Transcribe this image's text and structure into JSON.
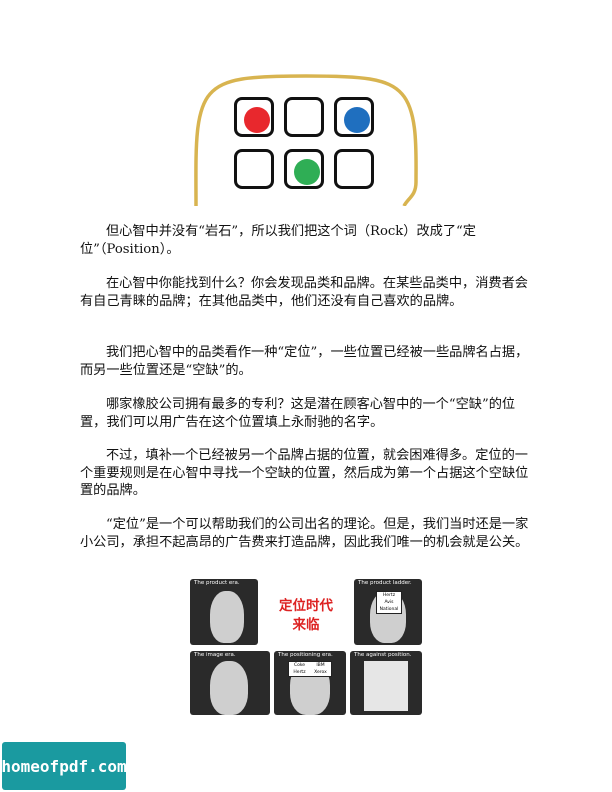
{
  "paragraphs": [
    {
      "text": "但心智中并没有“岩石”，所以我们把这个词（Rock）改成了“定位”（Position）。"
    },
    {
      "text": "在心智中你能找到什么？你会发现品类和品牌。在某些品类中，消费者会有自己青睐的品牌；在其他品类中，他们还没有自己喜欢的品牌。"
    },
    {
      "text": "我们把心智中的品类看作一种“定位”，一些位置已经被一些品牌名占据，而另一些位置还是“空缺”的。"
    },
    {
      "text": "哪家橡胶公司拥有最多的专利？这是潜在顾客心智中的一个“空缺”的位置，我们可以用广告在这个位置填上永耐驰的名字。"
    },
    {
      "text": "不过，填补一个已经被另一个品牌占据的位置，就会困难得多。定位的一个重要规则是在心智中寻找一个空缺的位置，然后成为第一个占据这个空缺位置的品牌。"
    },
    {
      "text": "“定位”是一个可以帮助我们的公司出名的理论。但是，我们当时还是一家小公司，承担不起高昂的广告费来打造品牌，因此我们唯一的机会就是公关。"
    }
  ],
  "illustration": {
    "colors": {
      "outline": "#d8b450",
      "red": "#e8282d",
      "blue": "#1f6fbf",
      "green": "#2fae55"
    }
  },
  "collage": {
    "center_line1": "定位时代",
    "center_line2": "来临",
    "captions": [
      "The product era.",
      "The product ladder.",
      "The image era.",
      "The positioning era.",
      "The against position."
    ],
    "ladder_top": [
      "Hertz",
      "Avis",
      "National"
    ],
    "ladder_bottom": [
      "Coke",
      "IBM",
      "Hertz",
      "Xerox"
    ]
  },
  "watermark": "homeofpdf.com"
}
